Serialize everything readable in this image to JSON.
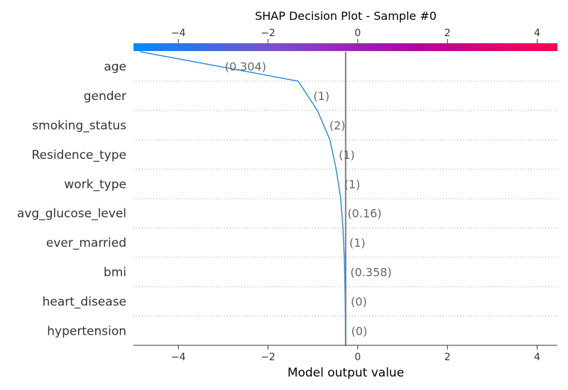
{
  "chart_data": {
    "type": "line",
    "title": "SHAP Decision Plot - Sample #0",
    "xlabel": "Model output value",
    "xlim": [
      -5.0,
      4.45
    ],
    "xticks": [
      -4,
      -2,
      0,
      2,
      4
    ],
    "xtick_labels": [
      "−4",
      "−2",
      "0",
      "2",
      "4"
    ],
    "base_value": -0.27,
    "features": [
      {
        "name": "age",
        "value_label": "(0.304)"
      },
      {
        "name": "gender",
        "value_label": "(1)"
      },
      {
        "name": "smoking_status",
        "value_label": "(2)"
      },
      {
        "name": "Residence_type",
        "value_label": "(1)"
      },
      {
        "name": "work_type",
        "value_label": "(1)"
      },
      {
        "name": "avg_glucose_level",
        "value_label": "(0.16)"
      },
      {
        "name": "ever_married",
        "value_label": "(1)"
      },
      {
        "name": "bmi",
        "value_label": "(0.358)"
      },
      {
        "name": "heart_disease",
        "value_label": "(0)"
      },
      {
        "name": "hypertension",
        "value_label": "(0)"
      }
    ],
    "decision_path": [
      -4.85,
      -1.33,
      -0.9,
      -0.62,
      -0.48,
      -0.38,
      -0.33,
      -0.3,
      -0.285,
      -0.275,
      -0.27
    ],
    "line_color": "#1E88E5",
    "base_line_color": "#808080",
    "colorbar": {
      "colors": [
        "#008BFB",
        "#7B4ECF",
        "#B6049E",
        "#FF0051"
      ]
    },
    "grid": "dotted horizontal"
  }
}
